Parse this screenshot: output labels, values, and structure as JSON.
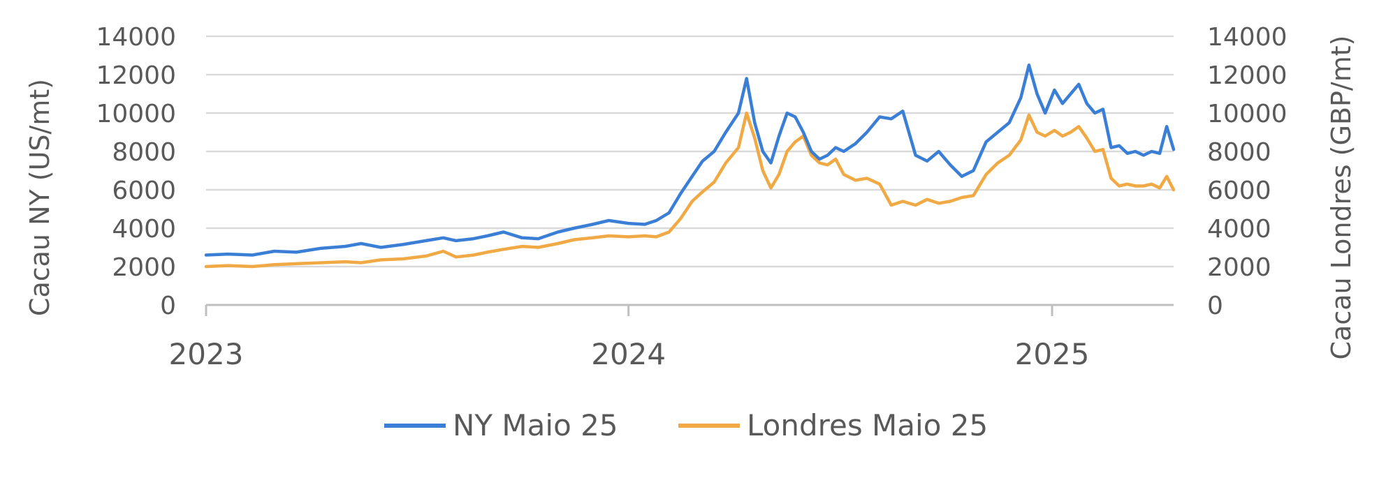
{
  "chart_data": {
    "type": "line",
    "title": "",
    "ylabel_left": "Cacau NY (US/mt)",
    "ylabel_right": "Cacau Londres (GBP/mt)",
    "ylim_left": [
      0,
      14000
    ],
    "ylim_right": [
      0,
      14000
    ],
    "y_ticks": [
      "14000",
      "12000",
      "10000",
      "8000",
      "6000",
      "4000",
      "2000",
      "0"
    ],
    "x_ticks": [
      "2023",
      "2024",
      "2025"
    ],
    "x_range": [
      "2023-01-01",
      "2025-04-16"
    ],
    "grid": true,
    "legend_position": "bottom",
    "colors": {
      "ny": "#3a7fd5",
      "london": "#f0a944",
      "grid": "#d9d9d9",
      "axis": "#bfbfbf",
      "text": "#595959"
    },
    "series": [
      {
        "name": "NY Maio 25",
        "axis": "left",
        "x": [
          "2023-01-01",
          "2023-01-20",
          "2023-02-10",
          "2023-03-01",
          "2023-03-20",
          "2023-04-10",
          "2023-05-01",
          "2023-05-15",
          "2023-06-01",
          "2023-06-20",
          "2023-07-10",
          "2023-07-25",
          "2023-08-05",
          "2023-08-20",
          "2023-09-01",
          "2023-09-15",
          "2023-10-01",
          "2023-10-15",
          "2023-11-01",
          "2023-11-15",
          "2023-12-01",
          "2023-12-15",
          "2024-01-01",
          "2024-01-15",
          "2024-01-25",
          "2024-02-05",
          "2024-02-15",
          "2024-02-25",
          "2024-03-05",
          "2024-03-15",
          "2024-03-25",
          "2024-04-05",
          "2024-04-12",
          "2024-04-19",
          "2024-04-26",
          "2024-05-03",
          "2024-05-10",
          "2024-05-17",
          "2024-05-24",
          "2024-05-31",
          "2024-06-07",
          "2024-06-14",
          "2024-06-21",
          "2024-06-28",
          "2024-07-05",
          "2024-07-15",
          "2024-07-25",
          "2024-08-05",
          "2024-08-15",
          "2024-08-25",
          "2024-09-05",
          "2024-09-15",
          "2024-09-25",
          "2024-10-05",
          "2024-10-15",
          "2024-10-25",
          "2024-11-05",
          "2024-11-15",
          "2024-11-25",
          "2024-12-05",
          "2024-12-12",
          "2024-12-19",
          "2024-12-26",
          "2025-01-03",
          "2025-01-10",
          "2025-01-17",
          "2025-01-24",
          "2025-01-31",
          "2025-02-07",
          "2025-02-14",
          "2025-02-21",
          "2025-02-28",
          "2025-03-07",
          "2025-03-14",
          "2025-03-21",
          "2025-03-28",
          "2025-04-04",
          "2025-04-10",
          "2025-04-16"
        ],
        "values": [
          2600,
          2650,
          2600,
          2800,
          2750,
          2950,
          3050,
          3200,
          3000,
          3150,
          3350,
          3500,
          3350,
          3450,
          3600,
          3800,
          3500,
          3450,
          3800,
          4000,
          4200,
          4400,
          4250,
          4200,
          4400,
          4800,
          5800,
          6700,
          7500,
          8000,
          9000,
          10000,
          11800,
          9500,
          8000,
          7400,
          8800,
          10000,
          9800,
          9000,
          8000,
          7600,
          7800,
          8200,
          8000,
          8400,
          9000,
          9800,
          9700,
          10100,
          7800,
          7500,
          8000,
          7300,
          6700,
          7000,
          8500,
          9000,
          9500,
          10800,
          12500,
          11000,
          10000,
          11200,
          10500,
          11000,
          11500,
          10500,
          10000,
          10200,
          8200,
          8300,
          7900,
          8000,
          7800,
          8000,
          7900,
          9300,
          8100
        ]
      },
      {
        "name": "Londres Maio 25",
        "axis": "right",
        "x": [
          "2023-01-01",
          "2023-01-20",
          "2023-02-10",
          "2023-03-01",
          "2023-03-20",
          "2023-04-10",
          "2023-05-01",
          "2023-05-15",
          "2023-06-01",
          "2023-06-20",
          "2023-07-10",
          "2023-07-25",
          "2023-08-05",
          "2023-08-20",
          "2023-09-01",
          "2023-09-15",
          "2023-10-01",
          "2023-10-15",
          "2023-11-01",
          "2023-11-15",
          "2023-12-01",
          "2023-12-15",
          "2024-01-01",
          "2024-01-15",
          "2024-01-25",
          "2024-02-05",
          "2024-02-15",
          "2024-02-25",
          "2024-03-05",
          "2024-03-15",
          "2024-03-25",
          "2024-04-05",
          "2024-04-12",
          "2024-04-19",
          "2024-04-26",
          "2024-05-03",
          "2024-05-10",
          "2024-05-17",
          "2024-05-24",
          "2024-05-31",
          "2024-06-07",
          "2024-06-14",
          "2024-06-21",
          "2024-06-28",
          "2024-07-05",
          "2024-07-15",
          "2024-07-25",
          "2024-08-05",
          "2024-08-15",
          "2024-08-25",
          "2024-09-05",
          "2024-09-15",
          "2024-09-25",
          "2024-10-05",
          "2024-10-15",
          "2024-10-25",
          "2024-11-05",
          "2024-11-15",
          "2024-11-25",
          "2024-12-05",
          "2024-12-12",
          "2024-12-19",
          "2024-12-26",
          "2025-01-03",
          "2025-01-10",
          "2025-01-17",
          "2025-01-24",
          "2025-01-31",
          "2025-02-07",
          "2025-02-14",
          "2025-02-21",
          "2025-02-28",
          "2025-03-07",
          "2025-03-14",
          "2025-03-21",
          "2025-03-28",
          "2025-04-04",
          "2025-04-10",
          "2025-04-16"
        ],
        "values": [
          2000,
          2050,
          2000,
          2100,
          2150,
          2200,
          2250,
          2200,
          2350,
          2400,
          2550,
          2800,
          2500,
          2600,
          2750,
          2900,
          3050,
          3000,
          3200,
          3400,
          3500,
          3600,
          3550,
          3600,
          3550,
          3800,
          4500,
          5400,
          5900,
          6400,
          7400,
          8200,
          10000,
          8700,
          7000,
          6100,
          6800,
          8000,
          8500,
          8800,
          7800,
          7400,
          7300,
          7600,
          6800,
          6500,
          6600,
          6300,
          5200,
          5400,
          5200,
          5500,
          5300,
          5400,
          5600,
          5700,
          6800,
          7400,
          7800,
          8600,
          9900,
          9000,
          8800,
          9100,
          8800,
          9000,
          9300,
          8700,
          8000,
          8100,
          6600,
          6200,
          6300,
          6200,
          6200,
          6300,
          6100,
          6700,
          6000
        ]
      }
    ]
  }
}
